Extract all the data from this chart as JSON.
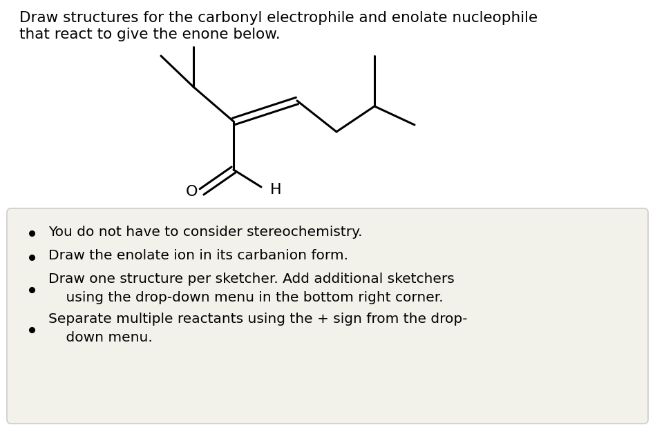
{
  "title_line1": "Draw structures for the carbonyl electrophile and enolate nucleophile",
  "title_line2": "that react to give the enone below.",
  "title_fontsize": 15.5,
  "title_color": "#000000",
  "background_color": "#ffffff",
  "box_color": "#f2f2ea",
  "box_edge_color": "#cccccc",
  "bullet_points": [
    "You do not have to consider stereochemistry.",
    "Draw the enolate ion in its carbanion form.",
    "Draw one structure per sketcher. Add additional sketchers\n    using the drop-down menu in the bottom right corner.",
    "Separate multiple reactants using the + sign from the drop-\n    down menu."
  ],
  "bullet_fontsize": 14.5,
  "molecule_color": "#000000",
  "label_O": "O",
  "label_H": "H",
  "lw": 2.2
}
